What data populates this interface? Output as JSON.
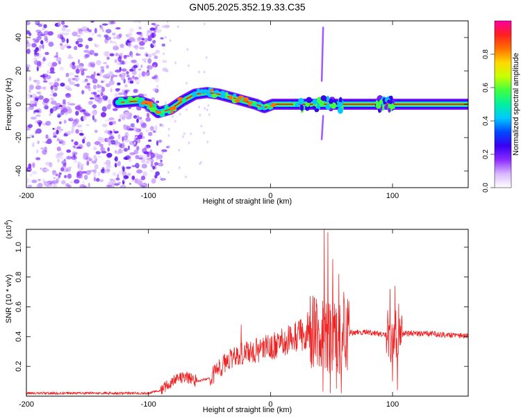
{
  "title": "GN05.2025.352.19.33.C35",
  "chart_data": [
    {
      "type": "heatmap",
      "name": "spectrogram",
      "xlabel": "Height of straight line (km)",
      "ylabel": "Frequency (Hz)",
      "xlim": [
        -200,
        162
      ],
      "ylim": [
        -50,
        50
      ],
      "xticks": [
        -200,
        -100,
        0,
        100
      ],
      "xtick_labels": [
        "-200",
        "-100",
        "0",
        "100"
      ],
      "yticks": [
        -40,
        -20,
        0,
        20,
        40
      ],
      "ytick_labels": [
        "-40",
        "-20",
        "0",
        "20",
        "40"
      ],
      "noise_region_x": [
        -200,
        -95
      ],
      "ridge": [
        {
          "x": -125,
          "f": 1
        },
        {
          "x": -108,
          "f": 2
        },
        {
          "x": -100,
          "f": 0
        },
        {
          "x": -92,
          "f": -5
        },
        {
          "x": -82,
          "f": -3
        },
        {
          "x": -72,
          "f": 2
        },
        {
          "x": -62,
          "f": 6
        },
        {
          "x": -52,
          "f": 7
        },
        {
          "x": -42,
          "f": 6
        },
        {
          "x": -32,
          "f": 4
        },
        {
          "x": -22,
          "f": 2
        },
        {
          "x": -12,
          "f": 0
        },
        {
          "x": -5,
          "f": -2
        },
        {
          "x": 2,
          "f": 0
        },
        {
          "x": 162,
          "f": 0
        }
      ],
      "bursts": [
        {
          "x": 42,
          "f": 30,
          "span": 32
        },
        {
          "x": 42,
          "f": -14,
          "span": 14
        }
      ]
    },
    {
      "type": "colorbar",
      "name": "amplitude-colorbar",
      "label": "Normalized spectral amplitude",
      "range": [
        0.0,
        1.0
      ],
      "ticks": [
        0.0,
        0.2,
        0.4,
        0.6,
        0.8
      ],
      "tick_labels": [
        "0.0",
        "0.2",
        "0.4",
        "0.6",
        "0.8"
      ],
      "colors": [
        "#ffffff",
        "#d8b8ff",
        "#8c2cff",
        "#3800f0",
        "#0048ff",
        "#00c8ff",
        "#00f0a0",
        "#40ff40",
        "#c8ff00",
        "#ffd800",
        "#ff7000",
        "#ff2020",
        "#ff00a0"
      ]
    },
    {
      "type": "line",
      "name": "snr-trace",
      "xlabel": "Height of straight line (km)",
      "ylabel": "SNR (10 * v/v)",
      "exponent_label": "(x10",
      "exponent_power": "4",
      "exponent_close": ")",
      "xlim": [
        -200,
        162
      ],
      "ylim": [
        0,
        1.12
      ],
      "xticks": [
        -200,
        -100,
        0,
        100
      ],
      "xtick_labels": [
        "-200",
        "-100",
        "0",
        "100"
      ],
      "yticks": [
        0.2,
        0.4,
        0.6,
        0.8,
        1.0
      ],
      "ytick_labels": [
        "0.2",
        "0.4",
        "0.6",
        "0.8",
        "1.0"
      ],
      "color": "#ee2222",
      "baseline_points": [
        {
          "x": -200,
          "y": 0.02
        },
        {
          "x": -100,
          "y": 0.02
        },
        {
          "x": -90,
          "y": 0.04
        },
        {
          "x": -80,
          "y": 0.1
        },
        {
          "x": -70,
          "y": 0.13
        },
        {
          "x": -60,
          "y": 0.1
        },
        {
          "x": -50,
          "y": 0.12
        },
        {
          "x": -40,
          "y": 0.2
        },
        {
          "x": -30,
          "y": 0.27
        },
        {
          "x": -20,
          "y": 0.29
        },
        {
          "x": -10,
          "y": 0.31
        },
        {
          "x": 0,
          "y": 0.33
        },
        {
          "x": 10,
          "y": 0.36
        },
        {
          "x": 20,
          "y": 0.4
        },
        {
          "x": 30,
          "y": 0.42
        },
        {
          "x": 38,
          "y": 0.45
        },
        {
          "x": 45,
          "y": 0.4
        },
        {
          "x": 55,
          "y": 0.38
        },
        {
          "x": 62,
          "y": 0.42
        },
        {
          "x": 70,
          "y": 0.43
        },
        {
          "x": 80,
          "y": 0.43
        },
        {
          "x": 90,
          "y": 0.42
        },
        {
          "x": 100,
          "y": 0.4
        },
        {
          "x": 110,
          "y": 0.42
        },
        {
          "x": 130,
          "y": 0.42
        },
        {
          "x": 150,
          "y": 0.41
        },
        {
          "x": 162,
          "y": 0.4
        }
      ],
      "peaks": [
        {
          "x": -24,
          "y": 0.48
        },
        {
          "x": 38,
          "y": 0.62
        },
        {
          "x": 44,
          "y": 1.12
        },
        {
          "x": 47,
          "y": 1.1
        },
        {
          "x": 51,
          "y": 0.92
        },
        {
          "x": 56,
          "y": 0.82
        },
        {
          "x": 60,
          "y": 0.7
        },
        {
          "x": 98,
          "y": 0.72
        },
        {
          "x": 102,
          "y": 0.74
        },
        {
          "x": 105,
          "y": 0.62
        }
      ],
      "troughs": [
        {
          "x": 43,
          "y": 0.03
        },
        {
          "x": 49,
          "y": 0.02
        },
        {
          "x": 54,
          "y": 0.05
        },
        {
          "x": 58,
          "y": 0.02
        },
        {
          "x": 100,
          "y": 0.1
        },
        {
          "x": 104,
          "y": 0.04
        }
      ]
    }
  ]
}
